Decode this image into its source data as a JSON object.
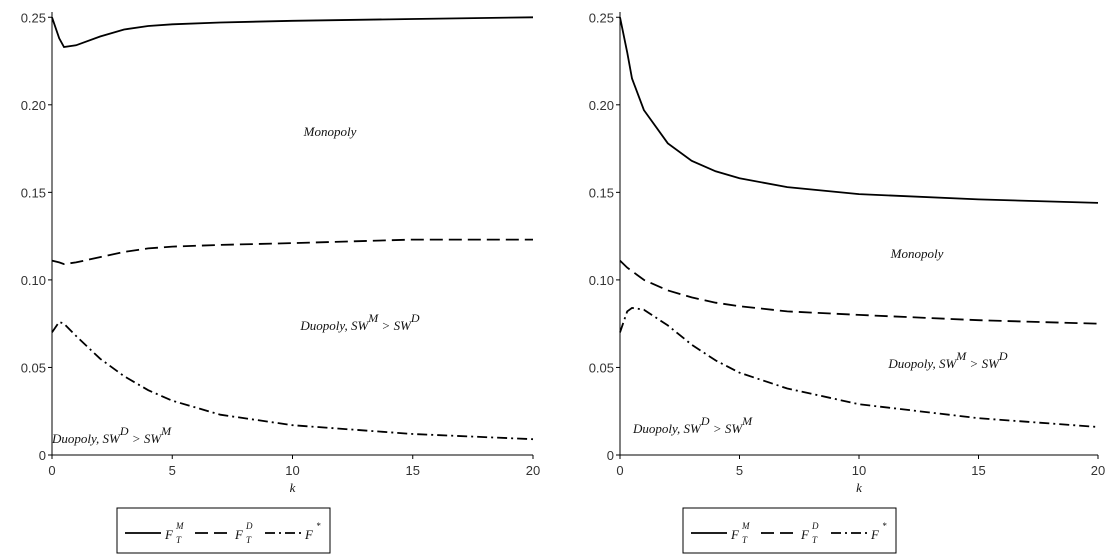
{
  "chart_data": [
    {
      "type": "line",
      "xlabel": "k",
      "x": [
        0,
        0.3,
        0.5,
        1,
        2,
        3,
        4,
        5,
        7,
        10,
        15,
        20
      ],
      "xlim": [
        0,
        20
      ],
      "xticks": [
        0,
        5,
        10,
        15,
        20
      ],
      "ylim": [
        0,
        0.253
      ],
      "yticks": [
        0,
        0.05,
        {
          "value": 0.1,
          "label": "0.10"
        },
        0.15,
        {
          "value": 0.2,
          "label": "0.20"
        },
        0.25
      ],
      "series": [
        {
          "name": "F",
          "sub": "T",
          "sup": "M",
          "color": "#000000",
          "style": "solid",
          "values": [
            0.25,
            0.238,
            0.233,
            0.234,
            0.239,
            0.243,
            0.245,
            0.246,
            0.247,
            0.248,
            0.249,
            0.25
          ]
        },
        {
          "name": "F",
          "sub": "T",
          "sup": "D",
          "color": "#000000",
          "style": "dash",
          "values": [
            0.111,
            0.11,
            0.109,
            0.11,
            0.113,
            0.116,
            0.118,
            0.119,
            0.12,
            0.121,
            0.123,
            0.123
          ]
        },
        {
          "name": "F",
          "sup": "*",
          "color": "#000000",
          "style": "dashdot",
          "values": [
            0.07,
            0.076,
            0.075,
            0.068,
            0.055,
            0.045,
            0.037,
            0.031,
            0.023,
            0.017,
            0.012,
            0.009
          ]
        }
      ],
      "annotations": [
        {
          "parts": [
            {
              "text": "Monopoly"
            }
          ]
        },
        {
          "parts": [
            {
              "text": "Duopoly, SW"
            },
            {
              "text": "M",
              "sup": true
            },
            {
              "text": " > SW"
            },
            {
              "text": "D",
              "sup": true
            }
          ]
        },
        {
          "parts": [
            {
              "text": "Duopoly, SW"
            },
            {
              "text": "D",
              "sup": true
            },
            {
              "text": " > SW"
            },
            {
              "text": "M",
              "sup": true
            }
          ]
        }
      ]
    },
    {
      "type": "line",
      "xlabel": "k",
      "x": [
        0,
        0.3,
        0.5,
        1,
        2,
        3,
        4,
        5,
        7,
        10,
        15,
        20
      ],
      "xlim": [
        0,
        20
      ],
      "xticks": [
        0,
        5,
        10,
        15,
        20
      ],
      "ylim": [
        0,
        0.253
      ],
      "yticks": [
        0,
        0.05,
        {
          "value": 0.1,
          "label": "0.10"
        },
        0.15,
        {
          "value": 0.2,
          "label": "0.20"
        },
        0.25
      ],
      "series": [
        {
          "name": "F",
          "sub": "T",
          "sup": "M",
          "color": "#000000",
          "style": "solid",
          "values": [
            0.25,
            0.23,
            0.215,
            0.197,
            0.178,
            0.168,
            0.162,
            0.158,
            0.153,
            0.149,
            0.146,
            0.144
          ]
        },
        {
          "name": "F",
          "sub": "T",
          "sup": "D",
          "color": "#000000",
          "style": "dash",
          "values": [
            0.111,
            0.107,
            0.105,
            0.1,
            0.094,
            0.09,
            0.087,
            0.085,
            0.082,
            0.08,
            0.077,
            0.075
          ]
        },
        {
          "name": "F",
          "sup": "*",
          "color": "#000000",
          "style": "dashdot",
          "values": [
            0.07,
            0.082,
            0.084,
            0.083,
            0.074,
            0.063,
            0.054,
            0.047,
            0.038,
            0.029,
            0.021,
            0.016
          ]
        }
      ],
      "annotations": [
        {
          "parts": [
            {
              "text": "Monopoly"
            }
          ]
        },
        {
          "parts": [
            {
              "text": "Duopoly, SW"
            },
            {
              "text": "M",
              "sup": true
            },
            {
              "text": " > SW"
            },
            {
              "text": "D",
              "sup": true
            }
          ]
        },
        {
          "parts": [
            {
              "text": "Duopoly, SW"
            },
            {
              "text": "D",
              "sup": true
            },
            {
              "text": " > SW"
            },
            {
              "text": "M",
              "sup": true
            }
          ]
        }
      ]
    }
  ]
}
